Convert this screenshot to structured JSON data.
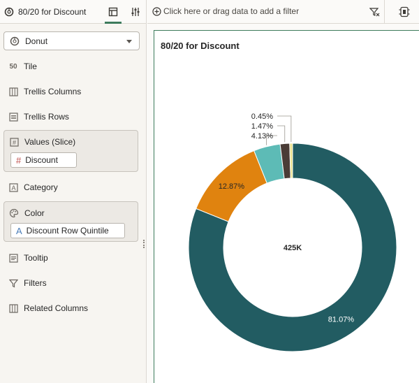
{
  "header": {
    "title": "80/20 for Discount"
  },
  "left_panel": {
    "viz_type": "Donut",
    "rows": {
      "tile": "Tile",
      "trellis_columns": "Trellis Columns",
      "trellis_rows": "Trellis Rows",
      "values_slice": "Values (Slice)",
      "category": "Category",
      "color": "Color",
      "tooltip": "Tooltip",
      "filters": "Filters",
      "related_columns": "Related Columns"
    },
    "values_chip": "Discount",
    "color_chip": "Discount Row Quintile",
    "tile_icon_text": "50"
  },
  "filter_bar": {
    "placeholder": "Click here or drag data to add a filter"
  },
  "chart_data": {
    "type": "pie",
    "title": "80/20 for Discount",
    "center_label": "425K",
    "slices": [
      {
        "label": "81.07%",
        "value": 81.07,
        "color": "#225c62"
      },
      {
        "label": "12.87%",
        "value": 12.87,
        "color": "#e0830f"
      },
      {
        "label": "4.13%",
        "value": 4.13,
        "color": "#5dbbb6"
      },
      {
        "label": "1.47%",
        "value": 1.47,
        "color": "#4a3c36"
      },
      {
        "label": "0.45%",
        "value": 0.45,
        "color": "#ece38e"
      }
    ]
  }
}
